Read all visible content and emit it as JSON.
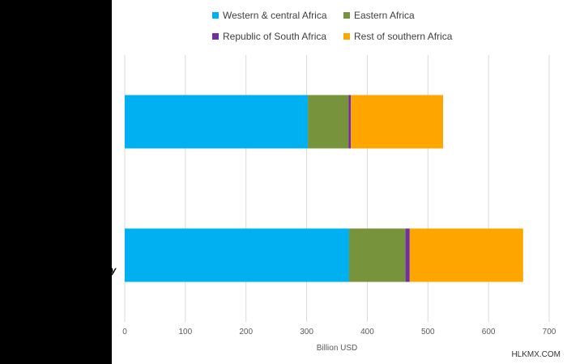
{
  "chart_data": {
    "type": "bar",
    "orientation": "horizontal",
    "stacked": true,
    "categories": [
      "",
      ""
    ],
    "series": [
      {
        "name": "Western & central Africa",
        "color": "#00b0f0",
        "values": [
          302,
          370
        ]
      },
      {
        "name": "Eastern Africa",
        "color": "#77933c",
        "values": [
          67,
          93
        ]
      },
      {
        "name": "Republic of South Africa",
        "color": "#7030a0",
        "values": [
          4,
          7
        ]
      },
      {
        "name": "Rest of southern Africa",
        "color": "#ffa500",
        "values": [
          152,
          187
        ]
      }
    ],
    "xlabel": "Billion USD",
    "xlim": [
      0,
      700
    ],
    "xticks": [
      "0",
      "100",
      "200",
      "300",
      "400",
      "500",
      "600",
      "700"
    ],
    "grid": true,
    "legend": "top"
  },
  "left_label_fragment": "cy",
  "watermark": "HLKMX.COM"
}
